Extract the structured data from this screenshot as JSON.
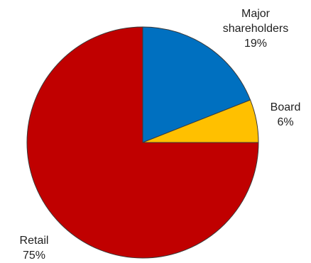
{
  "chart_data": {
    "type": "pie",
    "categories": [
      "Major shareholders",
      "Board",
      "Retail"
    ],
    "values": [
      19,
      6,
      75
    ],
    "value_labels": [
      "19%",
      "6%",
      "75%"
    ],
    "label_lines": [
      [
        "Major",
        "shareholders"
      ],
      [
        "Board"
      ],
      [
        "Retail"
      ]
    ],
    "colors": [
      "#0070C0",
      "#FFC000",
      "#C00000"
    ],
    "title": "",
    "legend": "none"
  }
}
